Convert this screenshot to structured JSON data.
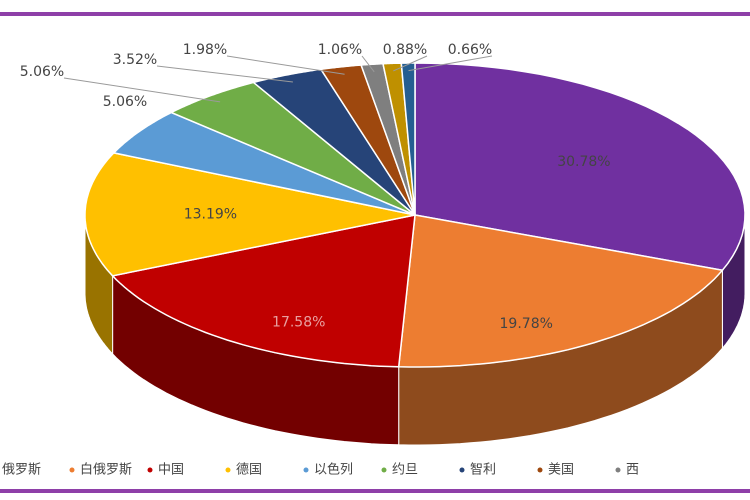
{
  "chart_data": {
    "type": "pie3d",
    "categories": [
      "俄罗斯",
      "白俄罗斯",
      "中国",
      "德国",
      "以色列",
      "约旦",
      "智利",
      "美国",
      "西",
      null,
      null
    ],
    "values": [
      30.78,
      19.78,
      17.58,
      13.19,
      5.06,
      5.06,
      3.52,
      1.98,
      1.06,
      0.88,
      0.66
    ],
    "value_labels": [
      "30.78%",
      "19.78%",
      "17.58%",
      "13.19%",
      "5.06%",
      "5.06%",
      "3.52%",
      "1.98%",
      "1.06%",
      "0.88%",
      "0.66%"
    ],
    "colors": [
      "#7030a0",
      "#ed7d31",
      "#c00000",
      "#ffc000",
      "#5b9bd5",
      "#70ad47",
      "#264478",
      "#9e480e",
      "#7f7f7f",
      "#bf9000",
      "#255e91"
    ]
  }
}
